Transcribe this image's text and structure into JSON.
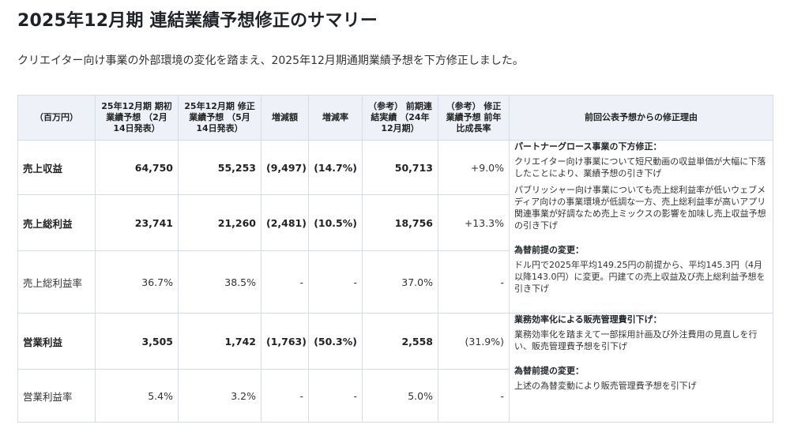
{
  "title": "2025年12月期 連結業績予想修正のサマリー",
  "subtitle": "クリエイター向け事業の外部環境の変化を踏まえ、2025年12月期通期業績予想を下方修正しました。",
  "table": {
    "headers": [
      "（百万円）",
      "25年12月期 期初業績予想 （2月14日発表）",
      "25年12月期 修正業績予想 （5月14日発表）",
      "増減額",
      "増減率",
      "（参考） 前期連結実績 （24年12月期）",
      "（参考） 修正業績予想 前年比成長率",
      "前回公表予想からの修正理由"
    ],
    "rows": [
      {
        "label": "売上収益",
        "initial": "64,750",
        "revised": "55,253",
        "diff": "(9,497)",
        "rate": "(14.7%)",
        "prior": "50,713",
        "growth": "+9.0%"
      },
      {
        "label": "売上総利益",
        "initial": "23,741",
        "revised": "21,260",
        "diff": "(2,481)",
        "rate": "(10.5%)",
        "prior": "18,756",
        "growth": "+13.3%"
      },
      {
        "label": "売上総利益率",
        "initial": "36.7%",
        "revised": "38.5%",
        "diff": "-",
        "rate": "-",
        "prior": "37.0%",
        "growth": "-"
      },
      {
        "label": "営業利益",
        "initial": "3,505",
        "revised": "1,742",
        "diff": "(1,763)",
        "rate": "(50.3%)",
        "prior": "2,558",
        "growth": "(31.9%)"
      },
      {
        "label": "営業利益率",
        "initial": "5.4%",
        "revised": "3.2%",
        "diff": "-",
        "rate": "-",
        "prior": "5.0%",
        "growth": "-"
      }
    ],
    "reasons": {
      "revenue": {
        "heading": "パートナーグロース事業の下方修正：",
        "body1": "クリエイター向け事業について短尺動画の収益単価が大幅に下落したことにより、業績予想の引き下げ",
        "body2": "パブリッシャー向け事業についても売上総利益率が低いウェブメディア向けの事業環境が低調な一方、売上総利益率が高いアプリ関連事業が好調なため売上ミックスの影響を加味し売上収益予想の引き下げ",
        "fx_heading": "為替前提の変更：",
        "fx_body": "ドル円で2025年平均149.25円の前提から、平均145.3円（4月以降143.0円）に変更。円建ての売上収益及び売上総利益予想を引き下げ"
      },
      "operating": {
        "heading": "業務効率化による販売管理費引下げ：",
        "body": "業務効率化を踏まえて一部採用計画及び外注費用の見直しを行い、販売管理費予想を引下げ",
        "fx_heading": "為替前提の変更：",
        "fx_body": "上述の為替変動により販売管理費予想を引下げ"
      }
    }
  }
}
